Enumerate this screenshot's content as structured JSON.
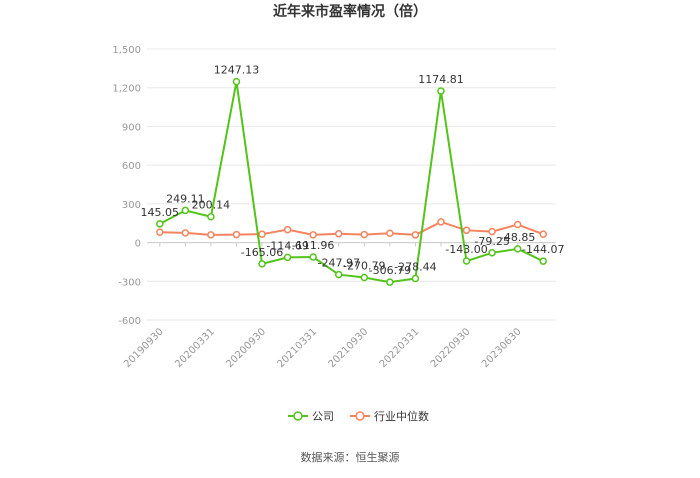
{
  "chart_data": {
    "type": "line",
    "title": "近年来市盈率情况（倍）",
    "categories": [
      "20190930",
      null,
      "20200331",
      null,
      "20200930",
      null,
      "20210331",
      null,
      "20210930",
      null,
      "20220331",
      null,
      "20220930",
      null,
      "20230630",
      null
    ],
    "series": [
      {
        "name": "公司",
        "color": "#52c41a",
        "values": [
          145.05,
          249.11,
          200.14,
          1247.13,
          -165.06,
          -114.69,
          -111.96,
          -247.97,
          -270.79,
          -306.79,
          -278.44,
          1174.81,
          -143.0,
          -79.25,
          -48.85,
          -144.07
        ],
        "value_labels": [
          "145.05",
          "249.11",
          "200.14",
          "1247.13",
          "-165.06",
          "-114.69",
          "-111.96",
          "-247.97",
          "-270.79",
          "-306.79",
          "-278.44",
          "1174.81",
          "-143.00",
          "-79.25",
          "-48.85",
          "-144.07"
        ]
      },
      {
        "name": "行业中位数",
        "color": "#f4845f",
        "values": [
          80,
          75,
          60,
          62,
          65,
          100,
          60,
          68,
          62,
          72,
          60,
          160,
          95,
          85,
          140,
          65
        ]
      }
    ],
    "ylim": [
      -600,
      1500
    ],
    "yticks": [
      {
        "value": -600,
        "label": "-600"
      },
      {
        "value": -300,
        "label": "-300"
      },
      0,
      300,
      600,
      900,
      {
        "value": 1200,
        "label": "1,200"
      },
      {
        "value": 1500,
        "label": "1,500"
      }
    ],
    "grid": true,
    "legend": "bottom",
    "source": "数据来源：恒生聚源"
  }
}
